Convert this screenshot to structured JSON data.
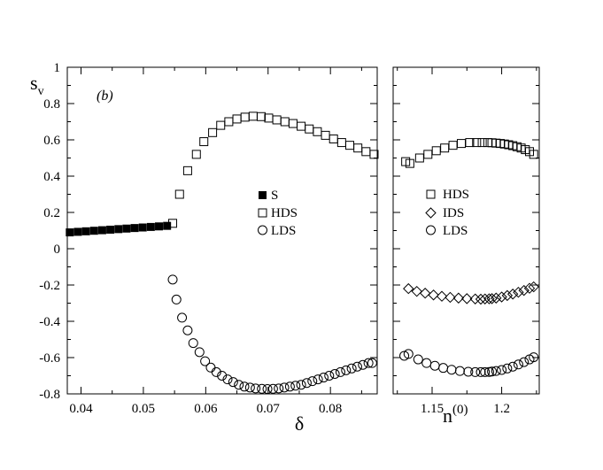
{
  "chart_data": [
    {
      "type": "scatter",
      "panel": "left",
      "panel_label": "(b)",
      "ylabel_main": "s",
      "ylabel_sub": "v",
      "xlabel": "δ",
      "xlim": [
        0.0378,
        0.0875
      ],
      "ylim": [
        -0.8,
        1.0
      ],
      "xticks": [
        0.04,
        0.05,
        0.06,
        0.07,
        0.08
      ],
      "xtick_labels": [
        "0.04",
        "0.05",
        "0.06",
        "0.07",
        "0.08"
      ],
      "yticks": [
        1.0,
        0.8,
        0.6,
        0.4,
        0.2,
        0,
        -0.2,
        -0.4,
        -0.6,
        -0.8
      ],
      "ytick_labels": [
        "1",
        "0.8",
        "0.6",
        "0.4",
        "0.2",
        "0",
        "-0.2",
        "-0.4",
        "-0.6",
        "-0.8"
      ],
      "legend": [
        "S",
        "HDS",
        "LDS"
      ],
      "legend_position": "center-right",
      "series": [
        {
          "name": "S",
          "marker": "filled-square",
          "x": [
            0.0382,
            0.0395,
            0.0408,
            0.0421,
            0.0434,
            0.0447,
            0.046,
            0.0473,
            0.0486,
            0.0499,
            0.0512,
            0.0525,
            0.0538
          ],
          "y": [
            0.09,
            0.093,
            0.096,
            0.099,
            0.102,
            0.105,
            0.108,
            0.111,
            0.114,
            0.117,
            0.12,
            0.123,
            0.126
          ]
        },
        {
          "name": "HDS",
          "marker": "open-square",
          "x": [
            0.0547,
            0.0558,
            0.0571,
            0.0585,
            0.0597,
            0.0611,
            0.0624,
            0.0637,
            0.065,
            0.0663,
            0.0676,
            0.0689,
            0.0701,
            0.0714,
            0.0727,
            0.074,
            0.0753,
            0.0766,
            0.0779,
            0.0792,
            0.0805,
            0.0818,
            0.0831,
            0.0844,
            0.0857,
            0.087
          ],
          "y": [
            0.14,
            0.3,
            0.43,
            0.52,
            0.59,
            0.64,
            0.68,
            0.7,
            0.715,
            0.725,
            0.73,
            0.728,
            0.72,
            0.71,
            0.7,
            0.69,
            0.675,
            0.66,
            0.645,
            0.625,
            0.605,
            0.585,
            0.57,
            0.555,
            0.535,
            0.52
          ]
        },
        {
          "name": "LDS",
          "marker": "open-circle",
          "x": [
            0.0547,
            0.0553,
            0.0562,
            0.0571,
            0.058,
            0.059,
            0.0599,
            0.0608,
            0.0617,
            0.0626,
            0.0635,
            0.0644,
            0.0653,
            0.0662,
            0.0671,
            0.068,
            0.069,
            0.0699,
            0.0708,
            0.0717,
            0.0726,
            0.0735,
            0.0744,
            0.0753,
            0.0762,
            0.0771,
            0.078,
            0.0789,
            0.0798,
            0.0807,
            0.0816,
            0.0825,
            0.0834,
            0.0843,
            0.0852,
            0.0861,
            0.0867
          ],
          "y": [
            -0.17,
            -0.28,
            -0.38,
            -0.45,
            -0.52,
            -0.57,
            -0.62,
            -0.655,
            -0.68,
            -0.7,
            -0.72,
            -0.735,
            -0.75,
            -0.76,
            -0.765,
            -0.77,
            -0.772,
            -0.773,
            -0.772,
            -0.77,
            -0.765,
            -0.76,
            -0.755,
            -0.75,
            -0.74,
            -0.73,
            -0.72,
            -0.71,
            -0.7,
            -0.69,
            -0.68,
            -0.67,
            -0.66,
            -0.65,
            -0.64,
            -0.63,
            -0.63
          ]
        }
      ]
    },
    {
      "type": "scatter",
      "panel": "right",
      "xlabel_main": "n",
      "xlabel_sup": "(0)",
      "xlim": [
        1.122,
        1.227
      ],
      "ylim": [
        -0.8,
        1.0
      ],
      "xticks": [
        1.15,
        1.2
      ],
      "xtick_labels": [
        "1.15",
        "1.2"
      ],
      "legend": [
        "HDS",
        "IDS",
        "LDS"
      ],
      "legend_position": "center",
      "series": [
        {
          "name": "HDS",
          "marker": "open-square",
          "x": [
            1.131,
            1.134,
            1.141,
            1.147,
            1.153,
            1.159,
            1.165,
            1.171,
            1.177,
            1.182,
            1.186,
            1.19,
            1.193,
            1.196,
            1.199,
            1.202,
            1.205,
            1.208,
            1.211,
            1.214,
            1.217,
            1.22,
            1.223
          ],
          "y": [
            0.48,
            0.47,
            0.5,
            0.52,
            0.54,
            0.555,
            0.57,
            0.58,
            0.585,
            0.585,
            0.585,
            0.585,
            0.584,
            0.582,
            0.58,
            0.577,
            0.573,
            0.568,
            0.562,
            0.555,
            0.546,
            0.535,
            0.52
          ]
        },
        {
          "name": "IDS",
          "marker": "open-diamond",
          "x": [
            1.133,
            1.139,
            1.145,
            1.151,
            1.157,
            1.163,
            1.169,
            1.175,
            1.181,
            1.185,
            1.188,
            1.191,
            1.193,
            1.196,
            1.2,
            1.204,
            1.208,
            1.212,
            1.216,
            1.22,
            1.223
          ],
          "y": [
            -0.22,
            -0.235,
            -0.245,
            -0.255,
            -0.262,
            -0.268,
            -0.272,
            -0.275,
            -0.277,
            -0.278,
            -0.277,
            -0.276,
            -0.275,
            -0.272,
            -0.266,
            -0.258,
            -0.25,
            -0.24,
            -0.23,
            -0.218,
            -0.21
          ]
        },
        {
          "name": "LDS",
          "marker": "open-circle",
          "x": [
            1.13,
            1.133,
            1.14,
            1.146,
            1.152,
            1.158,
            1.164,
            1.17,
            1.176,
            1.181,
            1.185,
            1.188,
            1.191,
            1.193,
            1.196,
            1.2,
            1.204,
            1.208,
            1.212,
            1.216,
            1.22,
            1.223
          ],
          "y": [
            -0.59,
            -0.58,
            -0.61,
            -0.63,
            -0.645,
            -0.657,
            -0.667,
            -0.674,
            -0.678,
            -0.68,
            -0.68,
            -0.68,
            -0.679,
            -0.677,
            -0.674,
            -0.668,
            -0.66,
            -0.65,
            -0.638,
            -0.625,
            -0.61,
            -0.598
          ]
        }
      ]
    }
  ]
}
